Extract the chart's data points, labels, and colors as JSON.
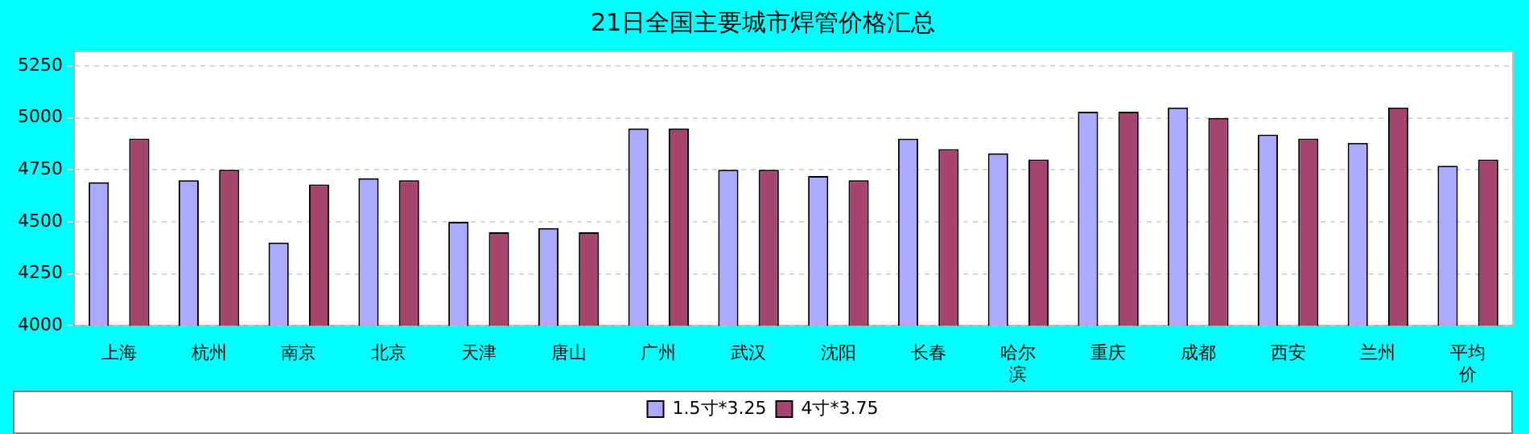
{
  "chart_data": {
    "type": "bar",
    "title": "21日全国主要城市焊管价格汇总",
    "categories": [
      "上海",
      "杭州",
      "南京",
      "北京",
      "天津",
      "唐山",
      "广州",
      "武汉",
      "沈阳",
      "长春",
      "哈尔滨",
      "重庆",
      "成都",
      "西安",
      "兰州",
      "平均价"
    ],
    "series": [
      {
        "name": "1.5寸*3.25",
        "color": "#aaaaff",
        "values": [
          4690,
          4700,
          4400,
          4710,
          4500,
          4470,
          4950,
          4750,
          4720,
          4900,
          4830,
          5030,
          5050,
          4920,
          4880,
          4770
        ]
      },
      {
        "name": "4寸*3.75",
        "color": "#a5456e",
        "values": [
          4900,
          4750,
          4680,
          4700,
          4450,
          4450,
          4950,
          4750,
          4700,
          4850,
          4800,
          5030,
          5000,
          4900,
          5050,
          4800
        ]
      }
    ],
    "ylim": [
      4000,
      5320
    ],
    "yticks": [
      4000,
      4250,
      4500,
      4750,
      5000,
      5250
    ],
    "grid": "y",
    "legend": "bottom"
  }
}
